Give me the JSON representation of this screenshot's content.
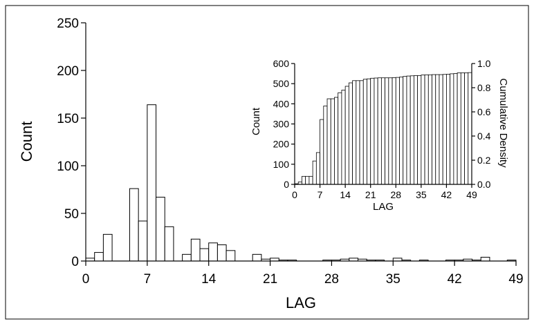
{
  "chart_data": [
    {
      "type": "bar",
      "xlabel": "LAG",
      "ylabel": "Count",
      "xlim": [
        0,
        49
      ],
      "ylim": [
        0,
        250
      ],
      "xticks": [
        "0",
        "7",
        "14",
        "21",
        "28",
        "35",
        "42",
        "49"
      ],
      "yticks": [
        "0",
        "50",
        "100",
        "150",
        "200",
        "250"
      ],
      "x": [
        0,
        1,
        2,
        3,
        4,
        5,
        6,
        7,
        8,
        9,
        10,
        11,
        12,
        13,
        14,
        15,
        16,
        17,
        18,
        19,
        20,
        21,
        22,
        23,
        24,
        25,
        26,
        27,
        28,
        29,
        30,
        31,
        32,
        33,
        34,
        35,
        36,
        37,
        38,
        39,
        40,
        41,
        42,
        43,
        44,
        45,
        46,
        47,
        48
      ],
      "values": [
        3,
        9,
        28,
        0,
        0,
        76,
        42,
        164,
        67,
        36,
        0,
        7,
        23,
        13,
        19,
        17,
        11,
        0,
        0,
        7,
        2,
        3,
        1,
        1,
        0,
        0,
        0,
        1,
        1,
        2,
        3,
        2,
        1,
        1,
        0,
        3,
        1,
        0,
        1,
        0,
        0,
        1,
        1,
        2,
        1,
        4,
        0,
        0,
        1
      ],
      "grid": false,
      "legend": "none"
    },
    {
      "type": "bar",
      "xlabel": "LAG",
      "ylabel": "Count",
      "y2label": "Cumulative Density",
      "xlim": [
        0,
        49
      ],
      "ylim": [
        0,
        600
      ],
      "y2lim": [
        0,
        1.0
      ],
      "xticks": [
        "0",
        "7",
        "14",
        "21",
        "28",
        "35",
        "42",
        "49"
      ],
      "yticks": [
        "0",
        "100",
        "200",
        "300",
        "400",
        "500",
        "600"
      ],
      "y2ticks": [
        "0.0",
        "0.2",
        "0.4",
        "0.6",
        "0.8",
        "1.0"
      ],
      "x": [
        0,
        1,
        2,
        3,
        4,
        5,
        6,
        7,
        8,
        9,
        10,
        11,
        12,
        13,
        14,
        15,
        16,
        17,
        18,
        19,
        20,
        21,
        22,
        23,
        24,
        25,
        26,
        27,
        28,
        29,
        30,
        31,
        32,
        33,
        34,
        35,
        36,
        37,
        38,
        39,
        40,
        41,
        42,
        43,
        44,
        45,
        46,
        47,
        48
      ],
      "values": [
        3,
        12,
        40,
        40,
        40,
        116,
        158,
        322,
        389,
        425,
        425,
        432,
        455,
        468,
        487,
        504,
        515,
        515,
        515,
        522,
        524,
        527,
        528,
        529,
        529,
        529,
        529,
        530,
        531,
        533,
        536,
        538,
        539,
        540,
        540,
        543,
        544,
        544,
        545,
        545,
        545,
        546,
        547,
        549,
        550,
        554,
        554,
        554,
        555
      ],
      "grid": false,
      "legend": "none",
      "placement": "top-right"
    }
  ]
}
